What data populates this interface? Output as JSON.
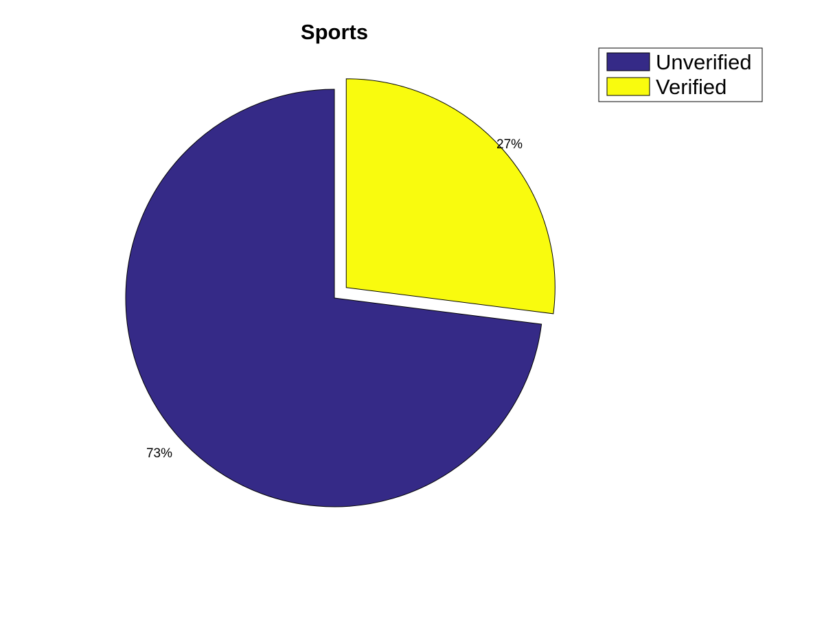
{
  "chart_data": {
    "type": "pie",
    "title": "Sports",
    "legend_position": "top-right",
    "slices": [
      {
        "name": "Unverified",
        "value": 73,
        "label": "73%",
        "color": "#352a87",
        "exploded": false
      },
      {
        "name": "Verified",
        "value": 27,
        "label": "27%",
        "color": "#f9fb0e",
        "exploded": true
      }
    ]
  }
}
